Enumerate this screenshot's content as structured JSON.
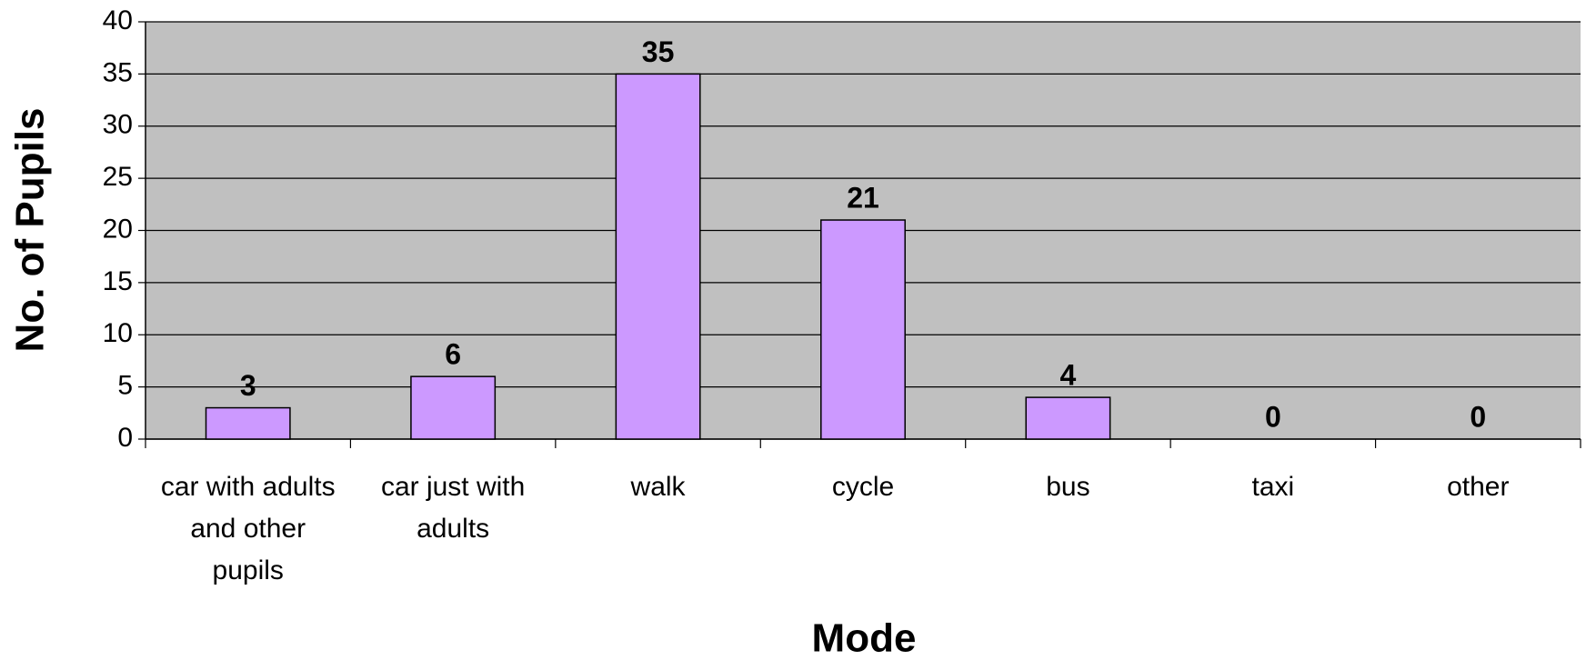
{
  "chart_data": {
    "type": "bar",
    "x_label": "Mode",
    "y_label": "No. of Pupils",
    "categories": [
      "car with adults and other pupils",
      "car just with adults",
      "walk",
      "cycle",
      "bus",
      "taxi",
      "other"
    ],
    "values": [
      3,
      6,
      35,
      21,
      4,
      0,
      0
    ],
    "color": "#cc99ff",
    "ylim": [
      0,
      40
    ],
    "yticks": [
      0,
      5,
      10,
      15,
      20,
      25,
      30,
      35,
      40
    ],
    "grid": true
  }
}
